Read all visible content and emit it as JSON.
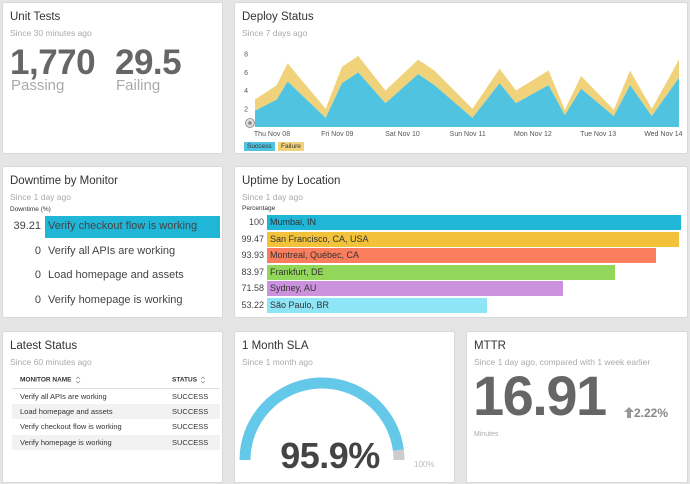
{
  "unit_tests": {
    "title": "Unit Tests",
    "subtitle": "Since 30 minutes ago",
    "passing_value": "1,770",
    "passing_label": "Passing",
    "failing_value": "29.5",
    "failing_label": "Failing"
  },
  "deploy_status": {
    "title": "Deploy Status",
    "subtitle": "Since 7 days ago"
  },
  "chart_data": {
    "type": "area",
    "stacked": true,
    "ylim": [
      0,
      9
    ],
    "y_ticks": [
      "2",
      "4",
      "6",
      "8"
    ],
    "x_tick_labels": [
      "Thu Nov 08",
      "Fri Nov 09",
      "Sat Nov 10",
      "Sun Nov 11",
      "Mon Nov 12",
      "Tue Nov 13",
      "Wed Nov 14"
    ],
    "x": [
      0,
      0.333,
      0.5,
      1.083,
      1.333,
      1.583,
      2.0,
      2.5,
      2.75,
      3.333,
      3.75,
      4.0,
      4.5,
      4.75,
      5.0,
      5.5,
      5.75,
      6.083,
      6.5
    ],
    "series": [
      {
        "name": "Success",
        "color": "#4fc3e0",
        "values": [
          1.8,
          3.0,
          5.0,
          1.0,
          4.8,
          6.0,
          2.6,
          5.8,
          4.6,
          1.0,
          4.8,
          2.6,
          4.6,
          1.3,
          4.2,
          1.2,
          4.6,
          1.2,
          5.4
        ]
      },
      {
        "name": "Failure",
        "color": "#f0d27a",
        "values": [
          1.2,
          1.6,
          2.0,
          1.0,
          1.8,
          1.8,
          1.4,
          1.6,
          1.6,
          1.0,
          1.6,
          1.4,
          1.6,
          0.6,
          1.4,
          0.7,
          1.6,
          0.8,
          2.0
        ]
      }
    ],
    "legend": [
      "Success",
      "Failure"
    ],
    "legend_placement": "bottom-left"
  },
  "downtime": {
    "title": "Downtime by Monitor",
    "subtitle": "Since 1 day ago",
    "axis_label": "Downtime (%)",
    "max": 39.21,
    "bar_color": "#1fb6d8",
    "rows": [
      {
        "value": "39.21",
        "pct": 1.0,
        "label": "Verify checkout flow is working"
      },
      {
        "value": "0",
        "pct": 0,
        "label": "Verify all APIs are working"
      },
      {
        "value": "0",
        "pct": 0,
        "label": "Load homepage and assets"
      },
      {
        "value": "0",
        "pct": 0,
        "label": "Verify homepage is working"
      }
    ]
  },
  "uptime": {
    "title": "Uptime by Location",
    "subtitle": "Since 1 day ago",
    "axis_label": "Percentage",
    "rows": [
      {
        "value": "100",
        "pct": 100,
        "label": "Mumbai, IN",
        "color": "#1fb6d8"
      },
      {
        "value": "99.47",
        "pct": 99.47,
        "label": "San Francisco, CA, USA",
        "color": "#f2c23a"
      },
      {
        "value": "93.93",
        "pct": 93.93,
        "label": "Montreal, Québec, CA",
        "color": "#fa7d5e"
      },
      {
        "value": "83.97",
        "pct": 83.97,
        "label": "Frankfurt, DE",
        "color": "#93d75a"
      },
      {
        "value": "71.58",
        "pct": 71.58,
        "label": "Sydney, AU",
        "color": "#cb91dc"
      },
      {
        "value": "53.22",
        "pct": 53.22,
        "label": "São Paulo, BR",
        "color": "#8ee5f5"
      }
    ]
  },
  "latest_status": {
    "title": "Latest Status",
    "subtitle": "Since 60 minutes ago",
    "col_monitor": "MONITOR NAME",
    "col_status": "STATUS",
    "rows": [
      {
        "name": "Verify all APIs are working",
        "status": "SUCCESS"
      },
      {
        "name": "Load homepage and assets",
        "status": "SUCCESS"
      },
      {
        "name": "Verify checkout flow is working",
        "status": "SUCCESS"
      },
      {
        "name": "Verify homepage is working",
        "status": "SUCCESS"
      }
    ]
  },
  "sla": {
    "title": "1 Month SLA",
    "subtitle": "Since 1 month ago",
    "value": "95.9%",
    "fraction": 0.959,
    "max_label": "100%",
    "gauge_color": "#64c8e8",
    "track_color": "#cccccc"
  },
  "mttr": {
    "title": "MTTR",
    "subtitle": "Since 1 day ago, compared with 1 week earlier",
    "value": "16.91",
    "delta": "2.22%",
    "unit": "Minutes"
  }
}
